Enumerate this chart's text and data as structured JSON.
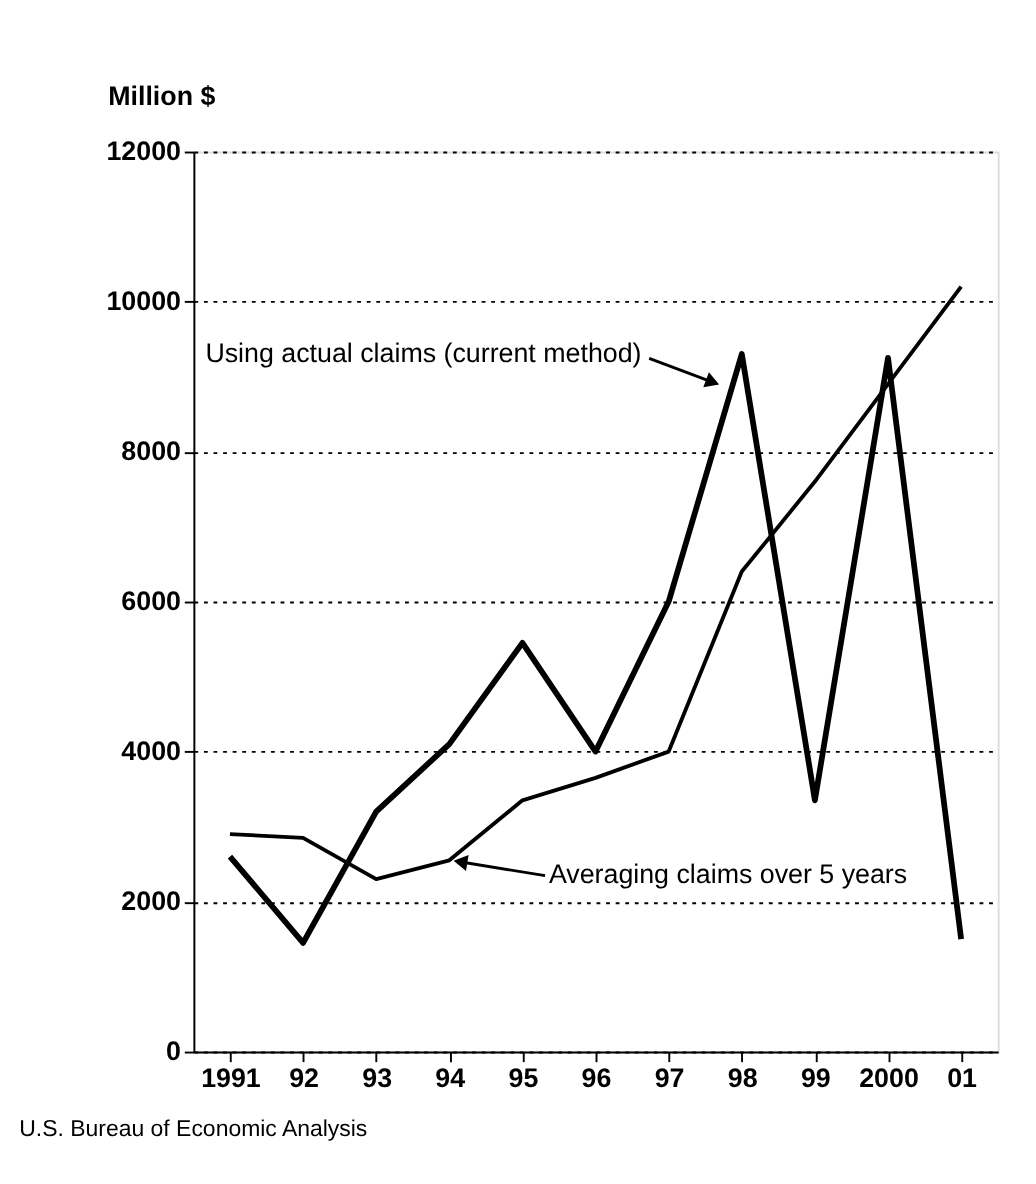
{
  "chart_data": {
    "type": "line",
    "ylabel": "Million $",
    "categories": [
      "1991",
      "92",
      "93",
      "94",
      "95",
      "96",
      "97",
      "98",
      "99",
      "2000",
      "01"
    ],
    "series": [
      {
        "color": "#000000",
        "values": [
          2600,
          1450,
          3200,
          4100,
          5450,
          4000,
          6000,
          9300,
          3350,
          9250,
          1500
        ]
      },
      {
        "color": "#000000",
        "values": [
          2900,
          2850,
          2300,
          2550,
          3350,
          3650,
          4000,
          6400,
          7600,
          8900,
          10200
        ]
      }
    ],
    "ylim": [
      0,
      12000
    ],
    "yticks": [
      0,
      2000,
      4000,
      6000,
      8000,
      10000,
      12000
    ],
    "grid": "y",
    "marker": "none",
    "line_style": "solid",
    "annotations": [
      "Using actual claims (current method)",
      {
        "text": "Averaging claims over 5 years",
        "x": "94",
        "y": 2550
      },
      "U.S. Bureau of Economic Analysis"
    ]
  }
}
